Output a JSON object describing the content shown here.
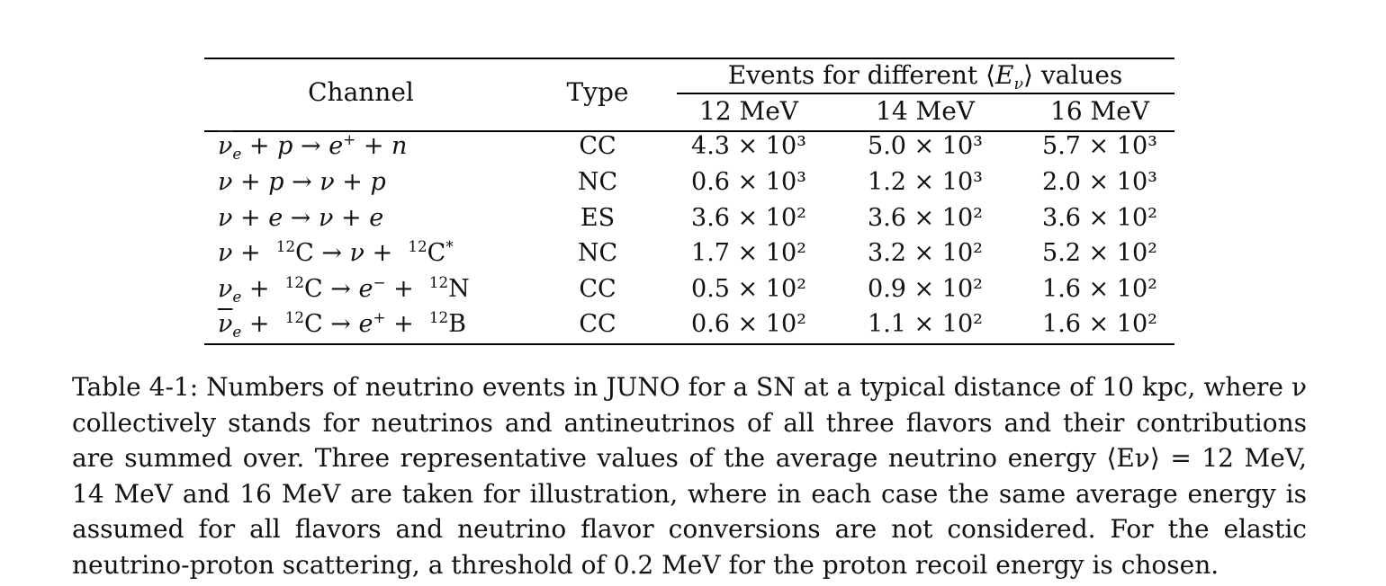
{
  "table": {
    "headers": {
      "channel": "Channel",
      "type": "Type",
      "events_group": "Events for different ⟨Eν⟩ values",
      "energies": [
        "12 MeV",
        "14 MeV",
        "16 MeV"
      ]
    },
    "rows": [
      {
        "channel": "ν̄e + p → e+ + n",
        "type": "CC",
        "values": [
          "4.3 × 10³",
          "5.0 × 10³",
          "5.7 × 10³"
        ]
      },
      {
        "channel": "ν + p → ν + p",
        "type": "NC",
        "values": [
          "0.6 × 10³",
          "1.2 × 10³",
          "2.0 × 10³"
        ]
      },
      {
        "channel": "ν + e → ν + e",
        "type": "ES",
        "values": [
          "3.6 × 10²",
          "3.6 × 10²",
          "3.6 × 10²"
        ]
      },
      {
        "channel": "ν + 12C → ν + 12C*",
        "type": "NC",
        "values": [
          "1.7 × 10²",
          "3.2 × 10²",
          "5.2 × 10²"
        ]
      },
      {
        "channel": "νe + 12C → e− + 12N",
        "type": "CC",
        "values": [
          "0.5 × 10²",
          "0.9 × 10²",
          "1.6 × 10²"
        ]
      },
      {
        "channel": "ν̄e + 12C → e+ + 12B",
        "type": "CC",
        "values": [
          "0.6 × 10²",
          "1.1 × 10²",
          "1.6 × 10²"
        ]
      }
    ]
  },
  "caption": "Table 4-1: Numbers of neutrino events in JUNO for a SN at a typical distance of 10 kpc, where ν collectively stands for neutrinos and antineutrinos of all three flavors and their contributions are summed over. Three representative values of the average neutrino energy ⟨Eν⟩ = 12 MeV, 14 MeV and 16 MeV are taken for illustration, where in each case the same average energy is assumed for all flavors and neutrino flavor conversions are not considered. For the elastic neutrino-proton scattering, a threshold of 0.2 MeV for the proton recoil energy is chosen."
}
